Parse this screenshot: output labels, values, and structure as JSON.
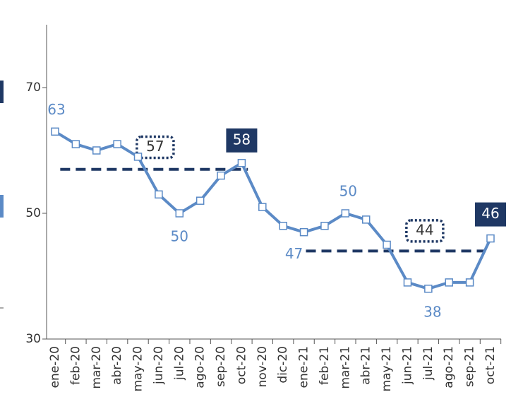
{
  "chart_data": {
    "type": "line",
    "categories": [
      "ene-20",
      "feb-20",
      "mar-20",
      "abr-20",
      "may-20",
      "jun-20",
      "jul-20",
      "ago-20",
      "sep-20",
      "oct-20",
      "nov-20",
      "dic-20",
      "ene-21",
      "feb-21",
      "mar-21",
      "abr-21",
      "may-21",
      "jun-21",
      "jul-21",
      "ago-21",
      "sep-21",
      "oct-21"
    ],
    "series": [
      {
        "color": "#5b8ac6",
        "values": [
          63,
          61,
          60,
          61,
          59,
          53,
          50,
          52,
          56,
          58,
          51,
          48,
          47,
          48,
          50,
          49,
          45,
          39,
          38,
          39,
          39,
          46
        ],
        "value_labels": [
          "63",
          null,
          null,
          null,
          null,
          null,
          "50",
          null,
          null,
          "58",
          null,
          null,
          "47",
          null,
          "50",
          null,
          null,
          null,
          "38",
          null,
          null,
          "46"
        ]
      }
    ],
    "reference_lines": [
      {
        "value": 57,
        "label": "57",
        "color": "#1f3864"
      },
      {
        "value": 44,
        "label": "44",
        "color": "#1f3864"
      }
    ],
    "ylim": [
      30,
      80
    ],
    "yticks": [
      30,
      50,
      70
    ]
  }
}
